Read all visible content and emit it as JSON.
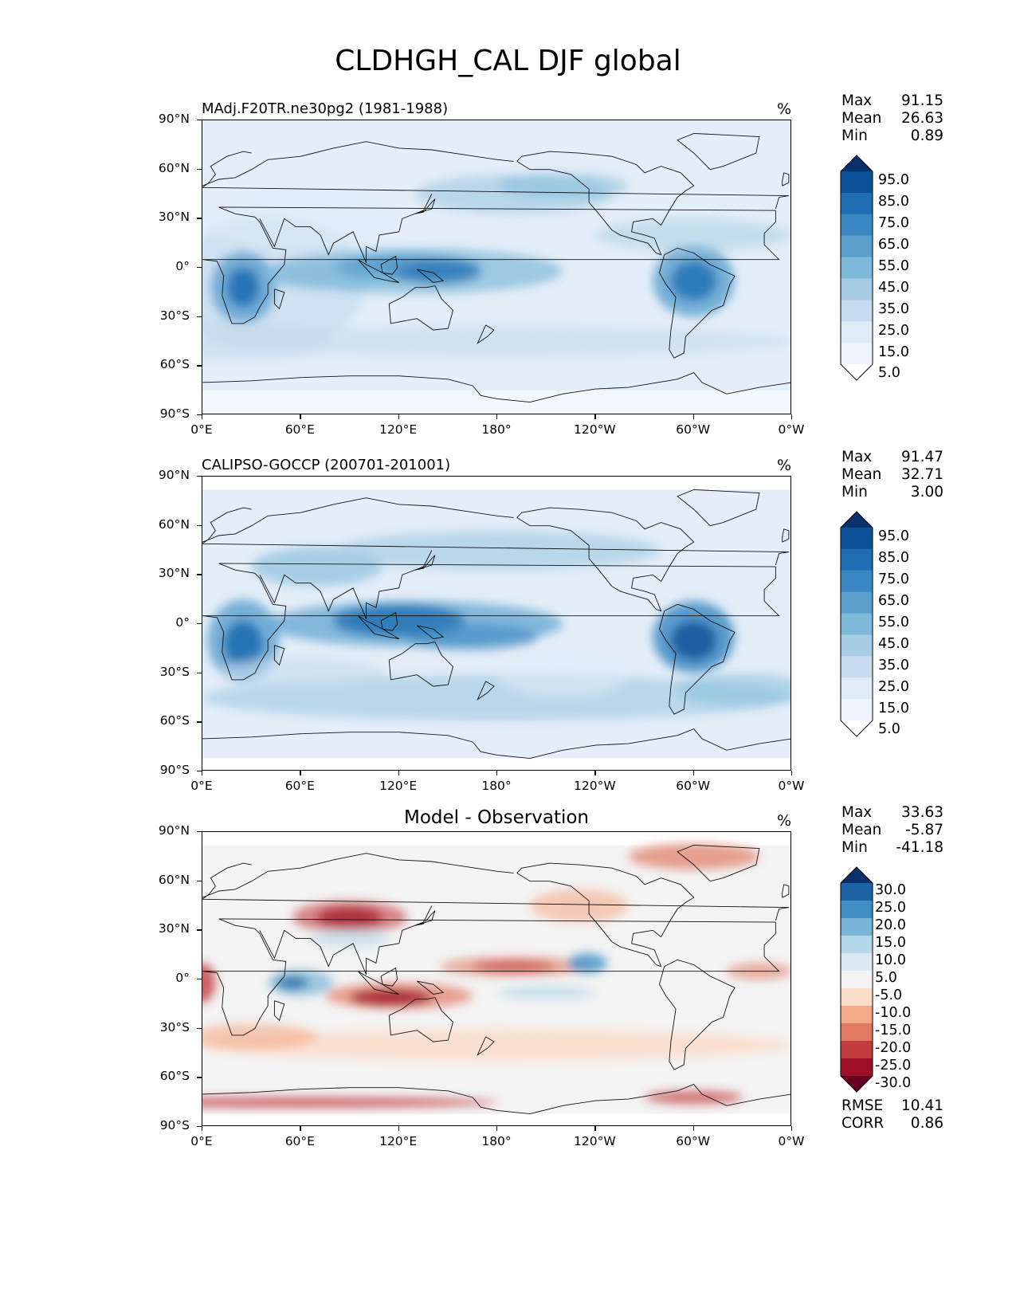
{
  "figure": {
    "title": "CLDHGH_CAL DJF global"
  },
  "chart_data": [
    {
      "type": "heatmap",
      "title": "MAdj.F20TR.ne30pg2 (1981-1988)",
      "units": "%",
      "stats": {
        "max_label": "Max",
        "max": "91.15",
        "mean_label": "Mean",
        "mean": "26.63",
        "min_label": "Min",
        "min": "0.89"
      },
      "x_ticks": [
        "0°E",
        "60°E",
        "120°E",
        "180°",
        "120°W",
        "60°W",
        "0°W"
      ],
      "y_ticks": [
        "90°N",
        "60°N",
        "30°N",
        "0°",
        "30°S",
        "60°S",
        "90°S"
      ],
      "xlim": [
        0,
        360
      ],
      "ylim": [
        -90,
        90
      ],
      "colormap": "Blues",
      "colorbar_levels": [
        "95.0",
        "85.0",
        "75.0",
        "65.0",
        "55.0",
        "45.0",
        "35.0",
        "25.0",
        "15.0",
        "5.0"
      ],
      "colorbar_colors": [
        "#08306b",
        "#0b4f97",
        "#1f6eb3",
        "#3a87c2",
        "#5aa0cf",
        "#7fb9da",
        "#a6cde4",
        "#c6dbef",
        "#deebf7",
        "#eef5fc",
        "#ffffff"
      ]
    },
    {
      "type": "heatmap",
      "title": "CALIPSO-GOCCP (200701-201001)",
      "units": "%",
      "stats": {
        "max_label": "Max",
        "max": "91.47",
        "mean_label": "Mean",
        "mean": "32.71",
        "min_label": "Min",
        "min": "3.00"
      },
      "x_ticks": [
        "0°E",
        "60°E",
        "120°E",
        "180°",
        "120°W",
        "60°W",
        "0°W"
      ],
      "y_ticks": [
        "90°N",
        "60°N",
        "30°N",
        "0°",
        "30°S",
        "60°S",
        "90°S"
      ],
      "xlim": [
        0,
        360
      ],
      "ylim": [
        -90,
        90
      ],
      "colormap": "Blues",
      "colorbar_levels": [
        "95.0",
        "85.0",
        "75.0",
        "65.0",
        "55.0",
        "45.0",
        "35.0",
        "25.0",
        "15.0",
        "5.0"
      ],
      "colorbar_colors": [
        "#08306b",
        "#0b4f97",
        "#1f6eb3",
        "#3a87c2",
        "#5aa0cf",
        "#7fb9da",
        "#a6cde4",
        "#c6dbef",
        "#deebf7",
        "#eef5fc",
        "#ffffff"
      ]
    },
    {
      "type": "heatmap",
      "title": "Model - Observation",
      "units": "%",
      "stats": {
        "max_label": "Max",
        "max": "33.63",
        "mean_label": "Mean",
        "mean": "-5.87",
        "min_label": "Min",
        "min": "-41.18"
      },
      "bottom_stats": {
        "rmse_label": "RMSE",
        "rmse": "10.41",
        "corr_label": "CORR",
        "corr": "0.86"
      },
      "x_ticks": [
        "0°E",
        "60°E",
        "120°E",
        "180°",
        "120°W",
        "60°W",
        "0°W"
      ],
      "y_ticks": [
        "90°N",
        "60°N",
        "30°N",
        "0°",
        "30°S",
        "60°S",
        "90°S"
      ],
      "xlim": [
        0,
        360
      ],
      "ylim": [
        -90,
        90
      ],
      "colormap": "RdBu_r",
      "colorbar_levels": [
        "30.0",
        "25.0",
        "20.0",
        "15.0",
        "10.0",
        "5.0",
        "-5.0",
        "-10.0",
        "-15.0",
        "-20.0",
        "-25.0",
        "-30.0"
      ],
      "colorbar_colors": [
        "#08306b",
        "#1e63a5",
        "#3f8fc4",
        "#79b5d8",
        "#b4d7e9",
        "#dde9f2",
        "#f4f4f4",
        "#fbdcc8",
        "#f4aa88",
        "#e07a62",
        "#c23b3d",
        "#9e0f27",
        "#67001f"
      ]
    }
  ]
}
